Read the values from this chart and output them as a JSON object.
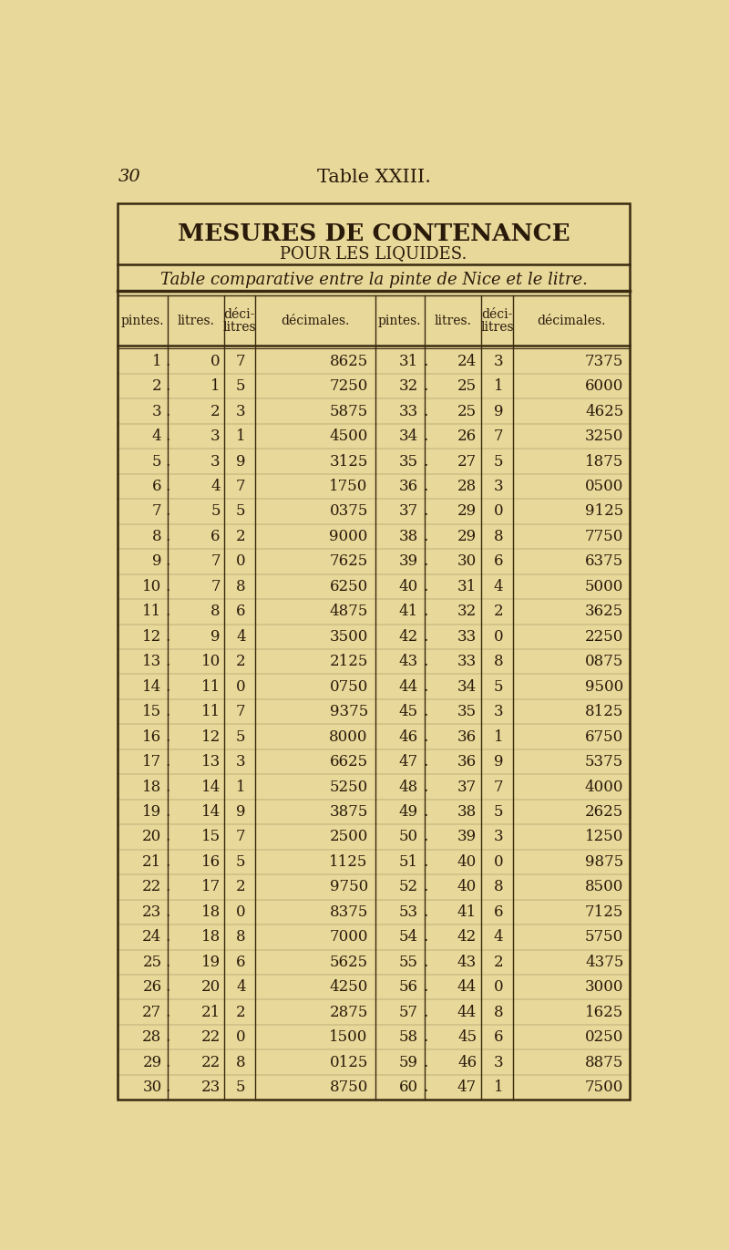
{
  "page_header": "30",
  "page_title": "Table XXIII.",
  "title1": "MESURES DE CONTENANCE",
  "title2": "POUR LES LIQUIDES.",
  "subtitle": "Table comparative entre la pinte de Nice et le litre.",
  "col_headers": [
    "pintes.",
    "litres.",
    "déci-\nlitres",
    "décimales.",
    "pintes.",
    "litres.",
    "déci-\nlitres",
    "décimales."
  ],
  "rows": [
    [
      1,
      0,
      7,
      "8625",
      31,
      24,
      3,
      "7375"
    ],
    [
      2,
      1,
      5,
      "7250",
      32,
      25,
      1,
      "6000"
    ],
    [
      3,
      2,
      3,
      "5875",
      33,
      25,
      9,
      "4625"
    ],
    [
      4,
      3,
      1,
      "4500",
      34,
      26,
      7,
      "3250"
    ],
    [
      5,
      3,
      9,
      "3125",
      35,
      27,
      5,
      "1875"
    ],
    [
      6,
      4,
      7,
      "1750",
      36,
      28,
      3,
      "0500"
    ],
    [
      7,
      5,
      5,
      "0375",
      37,
      29,
      0,
      "9125"
    ],
    [
      8,
      6,
      2,
      "9000",
      38,
      29,
      8,
      "7750"
    ],
    [
      9,
      7,
      0,
      "7625",
      39,
      30,
      6,
      "6375"
    ],
    [
      10,
      7,
      8,
      "6250",
      40,
      31,
      4,
      "5000"
    ],
    [
      11,
      8,
      6,
      "4875",
      41,
      32,
      2,
      "3625"
    ],
    [
      12,
      9,
      4,
      "3500",
      42,
      33,
      0,
      "2250"
    ],
    [
      13,
      10,
      2,
      "2125",
      43,
      33,
      8,
      "0875"
    ],
    [
      14,
      11,
      0,
      "0750",
      44,
      34,
      5,
      "9500"
    ],
    [
      15,
      11,
      7,
      "9375",
      45,
      35,
      3,
      "8125"
    ],
    [
      16,
      12,
      5,
      "8000",
      46,
      36,
      1,
      "6750"
    ],
    [
      17,
      13,
      3,
      "6625",
      47,
      36,
      9,
      "5375"
    ],
    [
      18,
      14,
      1,
      "5250",
      48,
      37,
      7,
      "4000"
    ],
    [
      19,
      14,
      9,
      "3875",
      49,
      38,
      5,
      "2625"
    ],
    [
      20,
      15,
      7,
      "2500",
      50,
      39,
      3,
      "1250"
    ],
    [
      21,
      16,
      5,
      "1125",
      51,
      40,
      0,
      "9875"
    ],
    [
      22,
      17,
      2,
      "9750",
      52,
      40,
      8,
      "8500"
    ],
    [
      23,
      18,
      0,
      "8375",
      53,
      41,
      6,
      "7125"
    ],
    [
      24,
      18,
      8,
      "7000",
      54,
      42,
      4,
      "5750"
    ],
    [
      25,
      19,
      6,
      "5625",
      55,
      43,
      2,
      "4375"
    ],
    [
      26,
      20,
      4,
      "4250",
      56,
      44,
      0,
      "3000"
    ],
    [
      27,
      21,
      2,
      "2875",
      57,
      44,
      8,
      "1625"
    ],
    [
      28,
      22,
      0,
      "1500",
      58,
      45,
      6,
      "0250"
    ],
    [
      29,
      22,
      8,
      "0125",
      59,
      46,
      3,
      "8875"
    ],
    [
      30,
      23,
      5,
      "8750",
      60,
      47,
      1,
      "7500"
    ]
  ],
  "bg_color": "#e8d89a",
  "text_color": "#2a1a0a",
  "line_color": "#3a2a10",
  "font_size_title": 19,
  "font_size_title2": 13,
  "font_size_subtitle": 13,
  "font_size_header": 10,
  "font_size_data": 12
}
